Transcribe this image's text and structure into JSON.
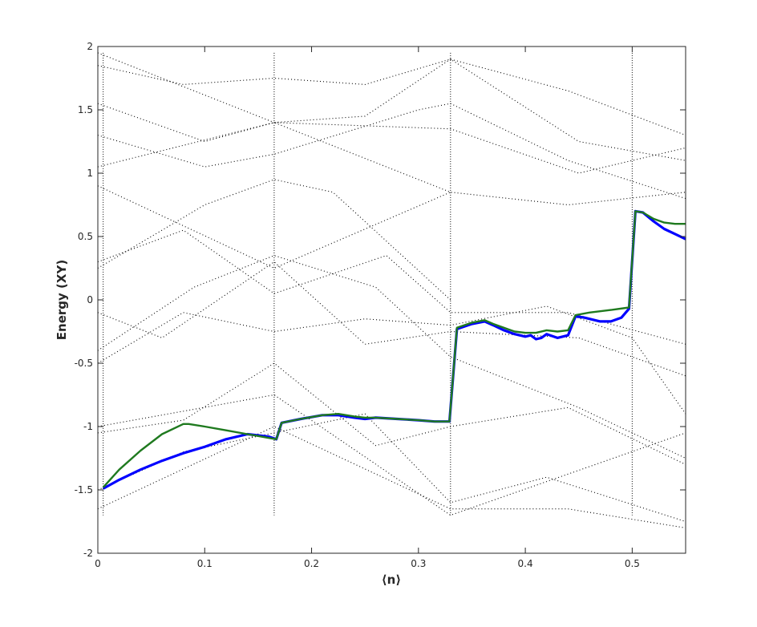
{
  "chart_data": {
    "type": "scatter",
    "title": "",
    "xlabel": "⟨n⟩",
    "ylabel": "Energy (XY)",
    "xlim": [
      0,
      0.55
    ],
    "ylim": [
      -2,
      2
    ],
    "xticks": [
      0,
      0.1,
      0.2,
      0.3,
      0.4,
      0.5
    ],
    "xtick_labels": [
      "0",
      "0.1",
      "0.2",
      "0.3",
      "0.4",
      "0.5"
    ],
    "yticks": [
      -2,
      -1.5,
      -1,
      -0.5,
      0,
      0.5,
      1,
      1.5,
      2
    ],
    "ytick_labels": [
      "-2",
      "-1.5",
      "-1",
      "-0.5",
      "0",
      "0.5",
      "1",
      "1.5",
      "2"
    ],
    "grid": false,
    "legend": "none",
    "background_spectrum": {
      "style": "black dotted energy levels",
      "color": "#000000",
      "bands": [
        {
          "x": [
            0,
            0.165,
            0.33,
            0.55
          ],
          "y": [
            -1.0,
            -0.75,
            -1.7,
            -1.05
          ]
        },
        {
          "x": [
            0,
            0.08,
            0.165,
            0.26,
            0.33,
            0.44,
            0.55
          ],
          "y": [
            -1.05,
            -0.95,
            -0.5,
            -1.15,
            -1.0,
            -0.85,
            -1.3
          ]
        },
        {
          "x": [
            0,
            0.08,
            0.165,
            0.25,
            0.33,
            0.42,
            0.55
          ],
          "y": [
            -1.5,
            -1.2,
            -1.05,
            -0.9,
            -1.6,
            -1.4,
            -1.75
          ]
        },
        {
          "x": [
            0,
            0.165,
            0.33,
            0.44,
            0.55
          ],
          "y": [
            -1.65,
            -1.0,
            -1.65,
            -1.65,
            -1.8
          ]
        },
        {
          "x": [
            0,
            0.08,
            0.165,
            0.25,
            0.33,
            0.42,
            0.5,
            0.55
          ],
          "y": [
            -0.5,
            -0.1,
            -0.25,
            -0.15,
            -0.2,
            -0.05,
            -0.3,
            -0.9
          ]
        },
        {
          "x": [
            0,
            0.06,
            0.165,
            0.25,
            0.33,
            0.45,
            0.55
          ],
          "y": [
            -0.1,
            -0.3,
            0.3,
            -0.35,
            -0.25,
            -0.3,
            -0.6
          ]
        },
        {
          "x": [
            0,
            0.08,
            0.165,
            0.27,
            0.33,
            0.44,
            0.55
          ],
          "y": [
            0.3,
            0.55,
            0.05,
            0.35,
            -0.1,
            -0.1,
            -0.35
          ]
        },
        {
          "x": [
            0,
            0.09,
            0.165,
            0.26,
            0.33,
            0.45,
            0.55
          ],
          "y": [
            -0.4,
            0.1,
            0.35,
            0.1,
            -0.45,
            -0.85,
            -1.25
          ]
        },
        {
          "x": [
            0,
            0.1,
            0.165,
            0.22,
            0.33
          ],
          "y": [
            0.25,
            0.75,
            0.95,
            0.85,
            0.0
          ]
        },
        {
          "x": [
            0,
            0.165,
            0.33
          ],
          "y": [
            0.9,
            0.25,
            0.85
          ]
        },
        {
          "x": [
            0,
            0.165,
            0.33,
            0.44,
            0.55
          ],
          "y": [
            1.05,
            1.4,
            0.85,
            0.75,
            0.85
          ]
        },
        {
          "x": [
            0,
            0.1,
            0.165,
            0.25,
            0.33,
            0.45,
            0.55
          ],
          "y": [
            1.55,
            1.25,
            1.4,
            1.45,
            1.9,
            1.25,
            1.1
          ]
        },
        {
          "x": [
            0,
            0.08,
            0.165,
            0.25,
            0.33,
            0.44,
            0.55
          ],
          "y": [
            1.85,
            1.7,
            1.75,
            1.7,
            1.9,
            1.65,
            1.3
          ]
        },
        {
          "x": [
            0,
            0.165,
            0.33,
            0.45,
            0.55
          ],
          "y": [
            1.95,
            1.4,
            1.35,
            1.0,
            1.2
          ]
        },
        {
          "x": [
            0,
            0.1,
            0.165,
            0.3,
            0.33,
            0.44,
            0.55
          ],
          "y": [
            1.3,
            1.05,
            1.15,
            1.5,
            1.55,
            1.1,
            0.8
          ]
        }
      ],
      "vertical_dense_lines_x": [
        0.005,
        0.165,
        0.33,
        0.5
      ]
    },
    "series": [
      {
        "color": "#0000ff",
        "x": [
          0.005,
          0.02,
          0.04,
          0.06,
          0.08,
          0.1,
          0.12,
          0.14,
          0.16,
          0.167,
          0.172,
          0.19,
          0.21,
          0.225,
          0.24,
          0.25,
          0.26,
          0.28,
          0.3,
          0.315,
          0.329,
          0.336,
          0.35,
          0.362,
          0.37,
          0.38,
          0.39,
          0.4,
          0.405,
          0.41,
          0.415,
          0.42,
          0.43,
          0.44,
          0.447,
          0.455,
          0.47,
          0.48,
          0.49,
          0.497,
          0.503,
          0.51,
          0.52,
          0.53,
          0.54,
          0.55
        ],
        "y": [
          -1.49,
          -1.42,
          -1.34,
          -1.27,
          -1.21,
          -1.16,
          -1.1,
          -1.06,
          -1.08,
          -1.1,
          -0.97,
          -0.94,
          -0.91,
          -0.91,
          -0.93,
          -0.94,
          -0.93,
          -0.94,
          -0.95,
          -0.96,
          -0.96,
          -0.23,
          -0.19,
          -0.17,
          -0.2,
          -0.24,
          -0.27,
          -0.29,
          -0.28,
          -0.31,
          -0.3,
          -0.27,
          -0.3,
          -0.28,
          -0.13,
          -0.14,
          -0.17,
          -0.17,
          -0.14,
          -0.07,
          0.7,
          0.69,
          0.62,
          0.56,
          0.52,
          0.48
        ]
      },
      {
        "color": "#1f7a1f",
        "x": [
          0.005,
          0.02,
          0.04,
          0.06,
          0.08,
          0.085,
          0.1,
          0.12,
          0.14,
          0.16,
          0.167,
          0.172,
          0.19,
          0.21,
          0.225,
          0.24,
          0.25,
          0.26,
          0.28,
          0.3,
          0.315,
          0.329,
          0.336,
          0.35,
          0.362,
          0.37,
          0.38,
          0.39,
          0.4,
          0.41,
          0.42,
          0.43,
          0.44,
          0.447,
          0.46,
          0.48,
          0.497,
          0.503,
          0.51,
          0.52,
          0.53,
          0.54,
          0.55
        ],
        "y": [
          -1.48,
          -1.34,
          -1.19,
          -1.06,
          -0.98,
          -0.98,
          -1.0,
          -1.03,
          -1.06,
          -1.09,
          -1.1,
          -0.97,
          -0.94,
          -0.91,
          -0.9,
          -0.92,
          -0.93,
          -0.93,
          -0.94,
          -0.95,
          -0.96,
          -0.96,
          -0.22,
          -0.18,
          -0.16,
          -0.19,
          -0.22,
          -0.25,
          -0.26,
          -0.26,
          -0.24,
          -0.25,
          -0.24,
          -0.12,
          -0.1,
          -0.08,
          -0.06,
          0.7,
          0.69,
          0.64,
          0.61,
          0.6,
          0.6
        ]
      }
    ]
  }
}
